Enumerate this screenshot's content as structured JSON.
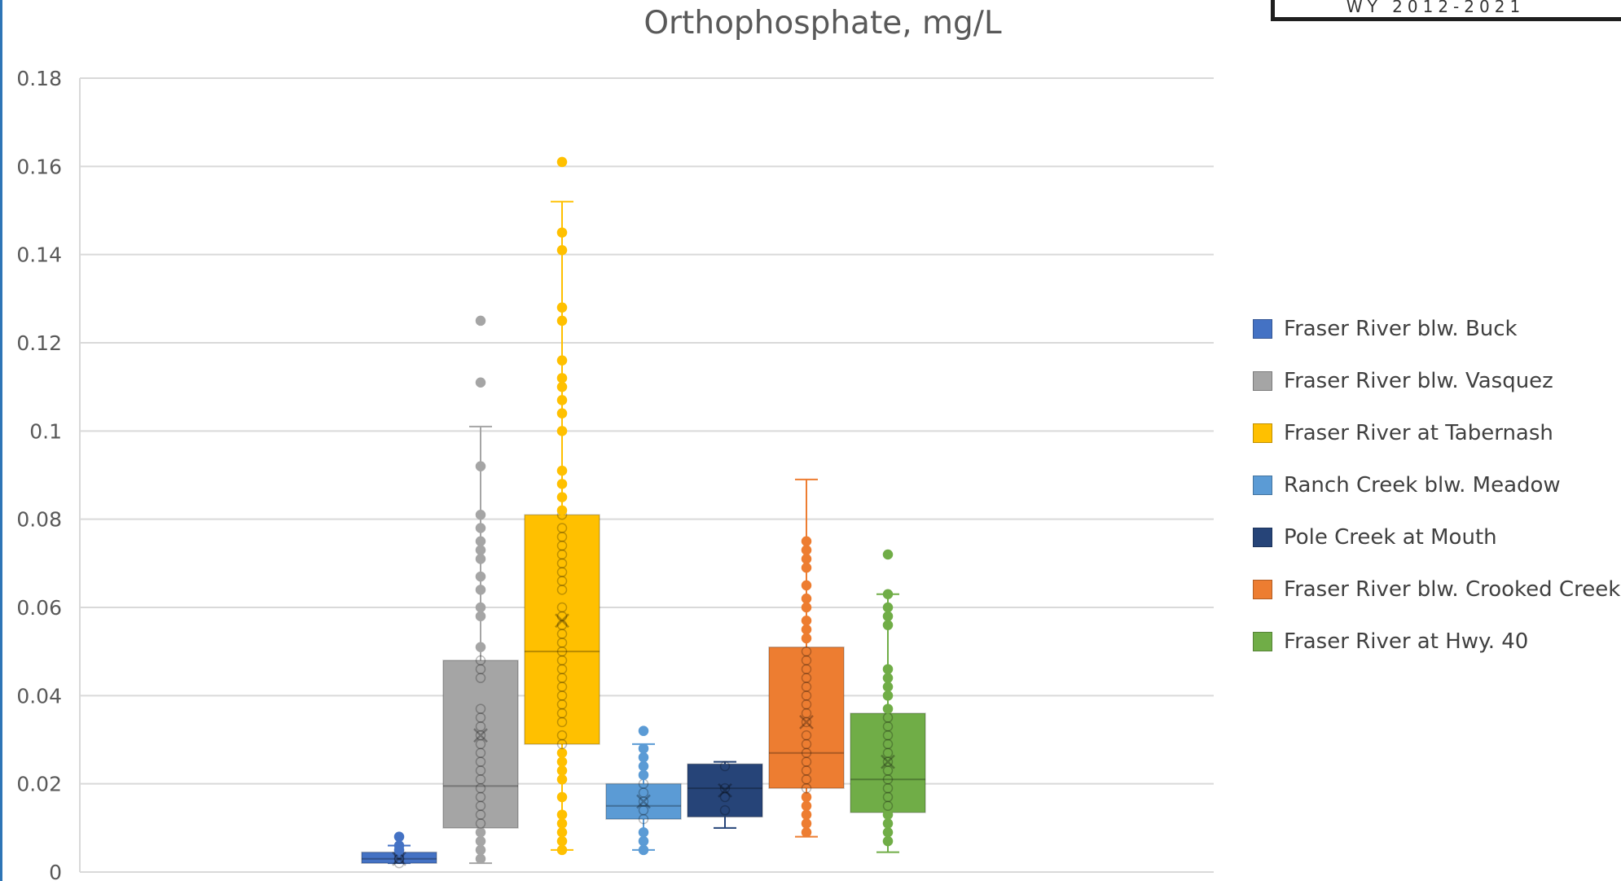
{
  "header": {
    "badge_text": "WY 2012-2021"
  },
  "chart_data": {
    "type": "box",
    "title": "Orthophosphate, mg/L",
    "xlabel": "",
    "ylabel": "",
    "ylim": [
      0,
      0.18
    ],
    "y_ticks": [
      0,
      0.02,
      0.04,
      0.06,
      0.08,
      0.1,
      0.12,
      0.14,
      0.16,
      0.18
    ],
    "y_tick_labels": [
      "0",
      "0.02",
      "0.04",
      "0.06",
      "0.08",
      "0.1",
      "0.12",
      "0.14",
      "0.16",
      "0.18"
    ],
    "grid": true,
    "legend_position": "right",
    "series": [
      {
        "name": "Fraser River blw. Buck",
        "color": "#4472c4",
        "whisker_low": 0.002,
        "q1": 0.002,
        "median": 0.003,
        "q3": 0.0045,
        "whisker_high": 0.006,
        "mean": 0.003,
        "points": [
          0.002,
          0.003,
          0.003,
          0.004,
          0.005,
          0.006,
          0.008
        ]
      },
      {
        "name": "Fraser River blw. Vasquez",
        "color": "#a5a5a5",
        "whisker_low": 0.002,
        "q1": 0.01,
        "median": 0.0195,
        "q3": 0.048,
        "whisker_high": 0.101,
        "mean": 0.031,
        "points": [
          0.003,
          0.005,
          0.007,
          0.009,
          0.011,
          0.013,
          0.015,
          0.017,
          0.019,
          0.021,
          0.023,
          0.025,
          0.027,
          0.029,
          0.031,
          0.033,
          0.035,
          0.037,
          0.044,
          0.046,
          0.048,
          0.051,
          0.058,
          0.06,
          0.064,
          0.067,
          0.071,
          0.073,
          0.075,
          0.078,
          0.081,
          0.092,
          0.111,
          0.125
        ]
      },
      {
        "name": "Fraser River at Tabernash",
        "color": "#ffc000",
        "whisker_low": 0.005,
        "q1": 0.029,
        "median": 0.05,
        "q3": 0.081,
        "whisker_high": 0.152,
        "mean": 0.057,
        "points": [
          0.005,
          0.007,
          0.009,
          0.011,
          0.013,
          0.017,
          0.021,
          0.023,
          0.025,
          0.027,
          0.029,
          0.031,
          0.034,
          0.036,
          0.038,
          0.04,
          0.042,
          0.044,
          0.046,
          0.048,
          0.05,
          0.052,
          0.054,
          0.056,
          0.058,
          0.06,
          0.064,
          0.066,
          0.068,
          0.07,
          0.072,
          0.074,
          0.076,
          0.078,
          0.081,
          0.082,
          0.085,
          0.088,
          0.091,
          0.1,
          0.104,
          0.107,
          0.11,
          0.112,
          0.116,
          0.125,
          0.128,
          0.141,
          0.145,
          0.161
        ]
      },
      {
        "name": "Ranch Creek blw. Meadow",
        "color": "#5b9bd5",
        "whisker_low": 0.005,
        "q1": 0.012,
        "median": 0.015,
        "q3": 0.02,
        "whisker_high": 0.029,
        "mean": 0.016,
        "points": [
          0.005,
          0.007,
          0.009,
          0.012,
          0.014,
          0.016,
          0.018,
          0.02,
          0.022,
          0.024,
          0.026,
          0.028,
          0.032
        ]
      },
      {
        "name": "Pole Creek at Mouth",
        "color": "#264478",
        "whisker_low": 0.01,
        "q1": 0.0125,
        "median": 0.019,
        "q3": 0.0245,
        "whisker_high": 0.025,
        "mean": 0.0185,
        "points": [
          0.014,
          0.017,
          0.019,
          0.024
        ]
      },
      {
        "name": "Fraser River blw. Crooked Creek",
        "color": "#ed7d31",
        "whisker_low": 0.008,
        "q1": 0.019,
        "median": 0.027,
        "q3": 0.051,
        "whisker_high": 0.089,
        "mean": 0.034,
        "points": [
          0.009,
          0.011,
          0.013,
          0.015,
          0.017,
          0.019,
          0.021,
          0.023,
          0.025,
          0.027,
          0.029,
          0.031,
          0.034,
          0.036,
          0.038,
          0.04,
          0.042,
          0.044,
          0.046,
          0.048,
          0.05,
          0.053,
          0.055,
          0.057,
          0.06,
          0.062,
          0.065,
          0.069,
          0.071,
          0.073,
          0.075
        ]
      },
      {
        "name": "Fraser River at Hwy. 40",
        "color": "#70ad47",
        "whisker_low": 0.0045,
        "q1": 0.0135,
        "median": 0.021,
        "q3": 0.036,
        "whisker_high": 0.063,
        "mean": 0.025,
        "points": [
          0.007,
          0.009,
          0.011,
          0.013,
          0.015,
          0.017,
          0.019,
          0.021,
          0.023,
          0.025,
          0.027,
          0.029,
          0.031,
          0.033,
          0.035,
          0.037,
          0.04,
          0.042,
          0.044,
          0.046,
          0.056,
          0.058,
          0.06,
          0.063,
          0.072
        ]
      }
    ]
  }
}
